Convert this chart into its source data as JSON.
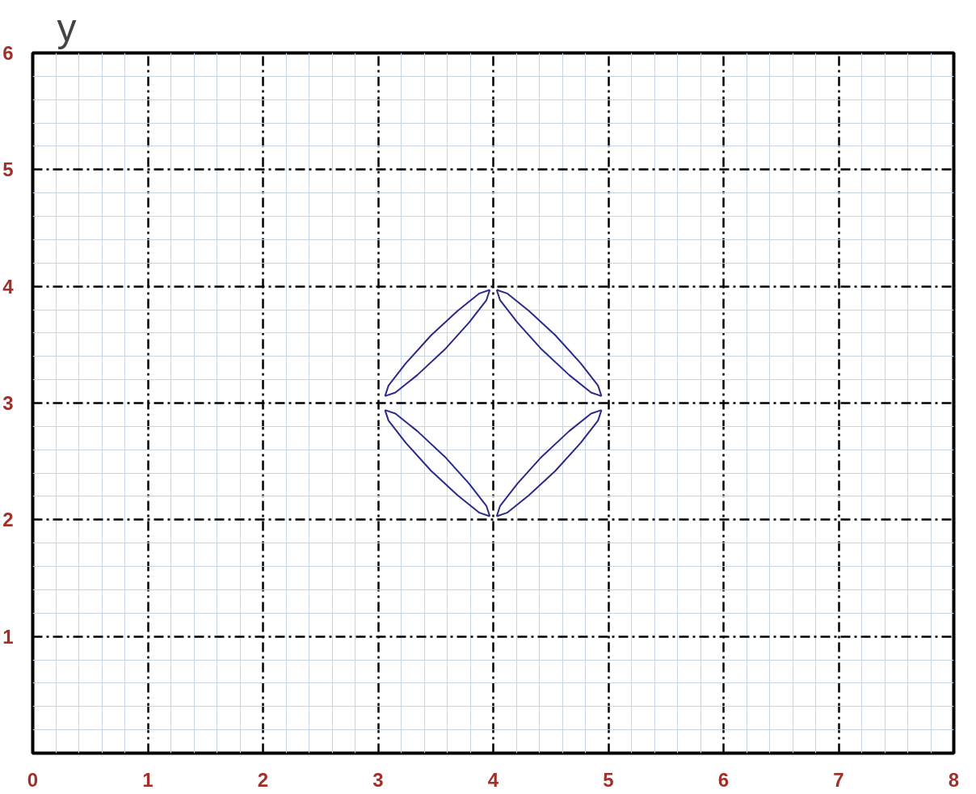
{
  "chart_data": {
    "type": "line",
    "ylabel": "y",
    "xlim": [
      0,
      8
    ],
    "ylim": [
      0,
      6
    ],
    "xticks": [
      0,
      1,
      2,
      3,
      4,
      5,
      6,
      7,
      8
    ],
    "yticks": [
      1,
      2,
      3,
      4,
      5,
      6
    ],
    "grid": true,
    "marker": "none",
    "line_style": "solid",
    "series": [
      {
        "color": "#2a2a8a",
        "x": [
          3.06,
          3.09,
          3.24,
          3.46,
          3.69,
          3.88,
          3.97
        ],
        "values": [
          3.06,
          3.15,
          3.34,
          3.58,
          3.79,
          3.94,
          3.97
        ]
      },
      {
        "color": "#2a2a8a",
        "x": [
          3.06,
          3.15,
          3.34,
          3.58,
          3.79,
          3.94,
          3.97
        ],
        "values": [
          3.06,
          3.09,
          3.24,
          3.46,
          3.69,
          3.88,
          3.97
        ]
      },
      {
        "color": "#2a2a8a",
        "x": [
          4.03,
          4.12,
          4.31,
          4.54,
          4.76,
          4.91,
          4.94
        ],
        "values": [
          3.97,
          3.94,
          3.79,
          3.58,
          3.34,
          3.15,
          3.06
        ]
      },
      {
        "color": "#2a2a8a",
        "x": [
          4.03,
          4.06,
          4.21,
          4.42,
          4.66,
          4.85,
          4.94
        ],
        "values": [
          3.97,
          3.88,
          3.69,
          3.46,
          3.24,
          3.09,
          3.06
        ]
      },
      {
        "color": "#2a2a8a",
        "x": [
          3.06,
          3.09,
          3.24,
          3.46,
          3.69,
          3.88,
          3.97
        ],
        "values": [
          2.94,
          2.85,
          2.66,
          2.42,
          2.21,
          2.06,
          2.03
        ]
      },
      {
        "color": "#2a2a8a",
        "x": [
          3.06,
          3.15,
          3.34,
          3.58,
          3.79,
          3.94,
          3.97
        ],
        "values": [
          2.94,
          2.91,
          2.76,
          2.54,
          2.31,
          2.12,
          2.03
        ]
      },
      {
        "color": "#2a2a8a",
        "x": [
          4.03,
          4.12,
          4.31,
          4.54,
          4.76,
          4.91,
          4.94
        ],
        "values": [
          2.03,
          2.06,
          2.21,
          2.42,
          2.66,
          2.85,
          2.94
        ]
      },
      {
        "color": "#2a2a8a",
        "x": [
          4.03,
          4.06,
          4.21,
          4.42,
          4.66,
          4.85,
          4.94
        ],
        "values": [
          2.03,
          2.12,
          2.31,
          2.54,
          2.76,
          2.91,
          2.94
        ]
      }
    ]
  }
}
